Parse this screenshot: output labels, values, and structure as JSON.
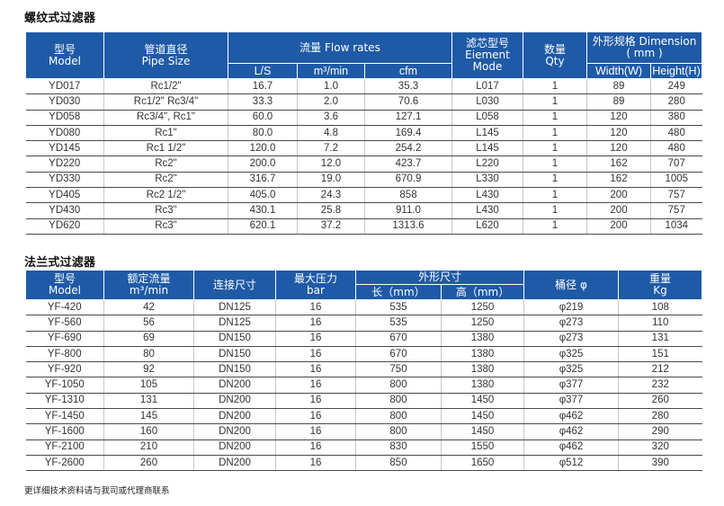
{
  "section1": {
    "title": "螺纹式过滤器",
    "header": {
      "model_cn": "型号",
      "model_en": "Model",
      "pipe_cn": "管道直径",
      "pipe_en": "Pipe Size",
      "flow": "流量 Flow rates",
      "flow_ls": "L/S",
      "flow_m3": "m³/min",
      "flow_cfm": "cfm",
      "elem_cn": "滤芯型号",
      "elem_en1": "Eiement",
      "elem_en2": "Mode",
      "qty_cn": "数量",
      "qty_en": "Qty",
      "dim_line1": "外形规格 Dimension",
      "dim_line2": "( mm )",
      "width": "Width(W)",
      "height": "Height(H)"
    },
    "rows": [
      [
        "YD017",
        "Rc1/2\"",
        "16.7",
        "1.0",
        "35.3",
        "L017",
        "1",
        "89",
        "249"
      ],
      [
        "YD030",
        "Rc1/2\" Rc3/4\"",
        "33.3",
        "2.0",
        "70.6",
        "L030",
        "1",
        "89",
        "280"
      ],
      [
        "YD058",
        "Rc3/4\", Rc1\"",
        "60.0",
        "3.6",
        "127.1",
        "L058",
        "1",
        "120",
        "380"
      ],
      [
        "YD080",
        "Rc1\"",
        "80.0",
        "4.8",
        "169.4",
        "L145",
        "1",
        "120",
        "480"
      ],
      [
        "YD145",
        "Rc1 1/2\"",
        "120.0",
        "7.2",
        "254.2",
        "L145",
        "1",
        "120",
        "480"
      ],
      [
        "YD220",
        "Rc2\"",
        "200.0",
        "12.0",
        "423.7",
        "L220",
        "1",
        "162",
        "707"
      ],
      [
        "YD330",
        "Rc2\"",
        "316.7",
        "19.0",
        "670.9",
        "L330",
        "1",
        "162",
        "1005"
      ],
      [
        "YD405",
        "Rc2 1/2\"",
        "405.0",
        "24.3",
        "858",
        "L430",
        "1",
        "200",
        "757"
      ],
      [
        "YD430",
        "Rc3\"",
        "430.1",
        "25.8",
        "911.0",
        "L430",
        "1",
        "200",
        "757"
      ],
      [
        "YD620",
        "Rc3\"",
        "620.1",
        "37.2",
        "1313.6",
        "L620",
        "1",
        "200",
        "1034"
      ]
    ]
  },
  "section2": {
    "title": "法兰式过滤器",
    "header": {
      "model_cn": "型号",
      "model_en": "Model",
      "rated_cn": "额定流量",
      "rated_en": "m³/min",
      "conn": "连接尺寸",
      "pressure_cn": "最大压力",
      "pressure_en": "bar",
      "dim": "外形尺寸",
      "length": "长（mm）",
      "height": "高（mm）",
      "diameter": "桶径 φ",
      "weight_cn": "重量",
      "weight_en": "Kg"
    },
    "rows": [
      [
        "YF-420",
        "42",
        "DN125",
        "16",
        "535",
        "1250",
        "φ219",
        "108"
      ],
      [
        "YF-560",
        "56",
        "DN125",
        "16",
        "535",
        "1250",
        "φ273",
        "110"
      ],
      [
        "YF-690",
        "69",
        "DN150",
        "16",
        "670",
        "1380",
        "φ273",
        "131"
      ],
      [
        "YF-800",
        "80",
        "DN150",
        "16",
        "670",
        "1380",
        "φ325",
        "151"
      ],
      [
        "YF-920",
        "92",
        "DN150",
        "16",
        "750",
        "1380",
        "φ325",
        "212"
      ],
      [
        "YF-1050",
        "105",
        "DN200",
        "16",
        "800",
        "1380",
        "φ377",
        "232"
      ],
      [
        "YF-1310",
        "131",
        "DN200",
        "16",
        "800",
        "1450",
        "φ377",
        "260"
      ],
      [
        "YF-1450",
        "145",
        "DN200",
        "16",
        "800",
        "1450",
        "φ462",
        "280"
      ],
      [
        "YF-1600",
        "160",
        "DN200",
        "16",
        "800",
        "1450",
        "φ462",
        "290"
      ],
      [
        "YF-2100",
        "210",
        "DN200",
        "16",
        "830",
        "1550",
        "φ462",
        "320"
      ],
      [
        "YF-2600",
        "260",
        "DN200",
        "16",
        "850",
        "1650",
        "φ512",
        "390"
      ]
    ]
  },
  "footnote": "更详细技术资料请与我司或代理商联系"
}
